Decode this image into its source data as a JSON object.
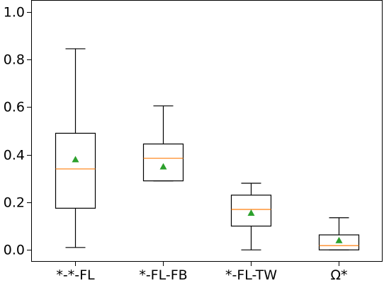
{
  "chart_data": {
    "type": "box",
    "categories": [
      "*-*-FL",
      "*-FL-FB",
      "*-FL-TW",
      "Ω*"
    ],
    "series": [
      {
        "boxes": [
          {
            "whisker_low": 0.01,
            "q1": 0.175,
            "median": 0.34,
            "q3": 0.49,
            "whisker_high": 0.845,
            "mean": 0.38
          },
          {
            "whisker_low": 0.29,
            "q1": 0.29,
            "median": 0.385,
            "q3": 0.445,
            "whisker_high": 0.605,
            "mean": 0.35
          },
          {
            "whisker_low": 0.0,
            "q1": 0.1,
            "median": 0.17,
            "q3": 0.23,
            "whisker_high": 0.28,
            "mean": 0.155
          },
          {
            "whisker_low": 0.0,
            "q1": 0.0,
            "median": 0.018,
            "q3": 0.063,
            "whisker_high": 0.135,
            "mean": 0.04
          }
        ]
      }
    ],
    "yticks": [
      "0.0",
      "0.2",
      "0.4",
      "0.6",
      "0.8",
      "1.0"
    ],
    "ylim": [
      -0.05,
      1.05
    ],
    "title": "",
    "xlabel": "",
    "ylabel": "",
    "grid": false,
    "colors": {
      "box_edge": "#000000",
      "median": "#ff7f0e",
      "mean_marker": "#2ca02c"
    }
  }
}
